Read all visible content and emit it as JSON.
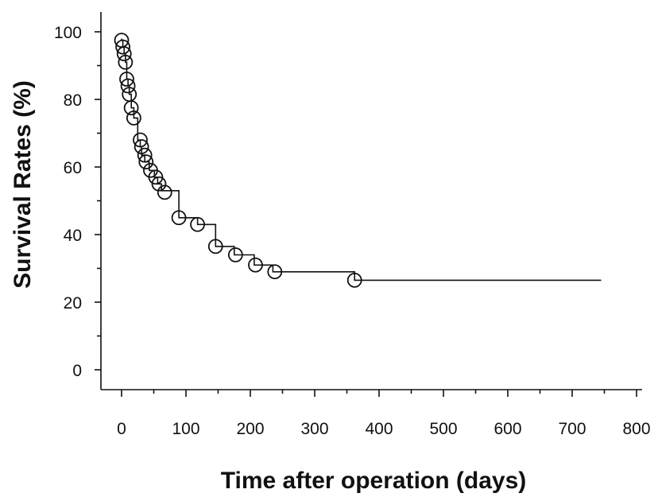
{
  "chart_data": {
    "type": "line",
    "xlabel": "Time after operation (days)",
    "ylabel": "Survival Rates (%)",
    "xlim": [
      0,
      800
    ],
    "ylim": [
      0,
      100
    ],
    "x_ticks": [
      "0",
      "100",
      "200",
      "300",
      "400",
      "500",
      "600",
      "700",
      "800"
    ],
    "y_ticks": [
      "0",
      "20",
      "40",
      "60",
      "80",
      "100"
    ],
    "grid": false,
    "legend": "none",
    "series": [
      {
        "step_curve": [
          [
            0,
            98
          ],
          [
            0,
            97.5
          ],
          [
            2,
            97.5
          ],
          [
            2,
            95.5
          ],
          [
            4,
            95.5
          ],
          [
            4,
            93.5
          ],
          [
            6,
            93.5
          ],
          [
            6,
            91
          ],
          [
            8,
            91
          ],
          [
            8,
            86
          ],
          [
            10,
            86
          ],
          [
            10,
            84
          ],
          [
            12,
            84
          ],
          [
            12,
            81.5
          ],
          [
            15,
            81.5
          ],
          [
            15,
            77.5
          ],
          [
            19,
            77.5
          ],
          [
            19,
            74.5
          ],
          [
            25,
            74.5
          ],
          [
            25,
            68
          ],
          [
            29,
            68
          ],
          [
            29,
            66
          ],
          [
            31,
            66
          ],
          [
            31,
            63.5
          ],
          [
            36,
            63.5
          ],
          [
            36,
            61.5
          ],
          [
            43,
            61.5
          ],
          [
            43,
            59
          ],
          [
            51,
            59
          ],
          [
            51,
            57
          ],
          [
            56,
            57
          ],
          [
            56,
            55
          ],
          [
            62,
            55
          ],
          [
            62,
            53
          ],
          [
            89,
            53
          ],
          [
            89,
            45
          ],
          [
            118,
            45
          ],
          [
            118,
            43
          ],
          [
            146,
            43
          ],
          [
            146,
            36.5
          ],
          [
            175,
            36.5
          ],
          [
            175,
            34
          ],
          [
            206,
            34
          ],
          [
            206,
            31
          ],
          [
            235,
            31
          ],
          [
            235,
            29
          ],
          [
            362,
            29
          ],
          [
            362,
            26.5
          ],
          [
            745,
            26.5
          ]
        ],
        "censored_points": [
          [
            0,
            97.5
          ],
          [
            2,
            95.5
          ],
          [
            4,
            93.5
          ],
          [
            6,
            91
          ],
          [
            8,
            86
          ],
          [
            10,
            84
          ],
          [
            12,
            81.5
          ],
          [
            15,
            77.5
          ],
          [
            19,
            74.5
          ],
          [
            29,
            68
          ],
          [
            31,
            66
          ],
          [
            36,
            63.5
          ],
          [
            38,
            61.5
          ],
          [
            45,
            59
          ],
          [
            53,
            57
          ],
          [
            58,
            55
          ],
          [
            67,
            52.5
          ],
          [
            89,
            45
          ],
          [
            118,
            43
          ],
          [
            146,
            36.5
          ],
          [
            177,
            34
          ],
          [
            208,
            31
          ],
          [
            238,
            29
          ],
          [
            362,
            26.5
          ]
        ]
      }
    ]
  }
}
